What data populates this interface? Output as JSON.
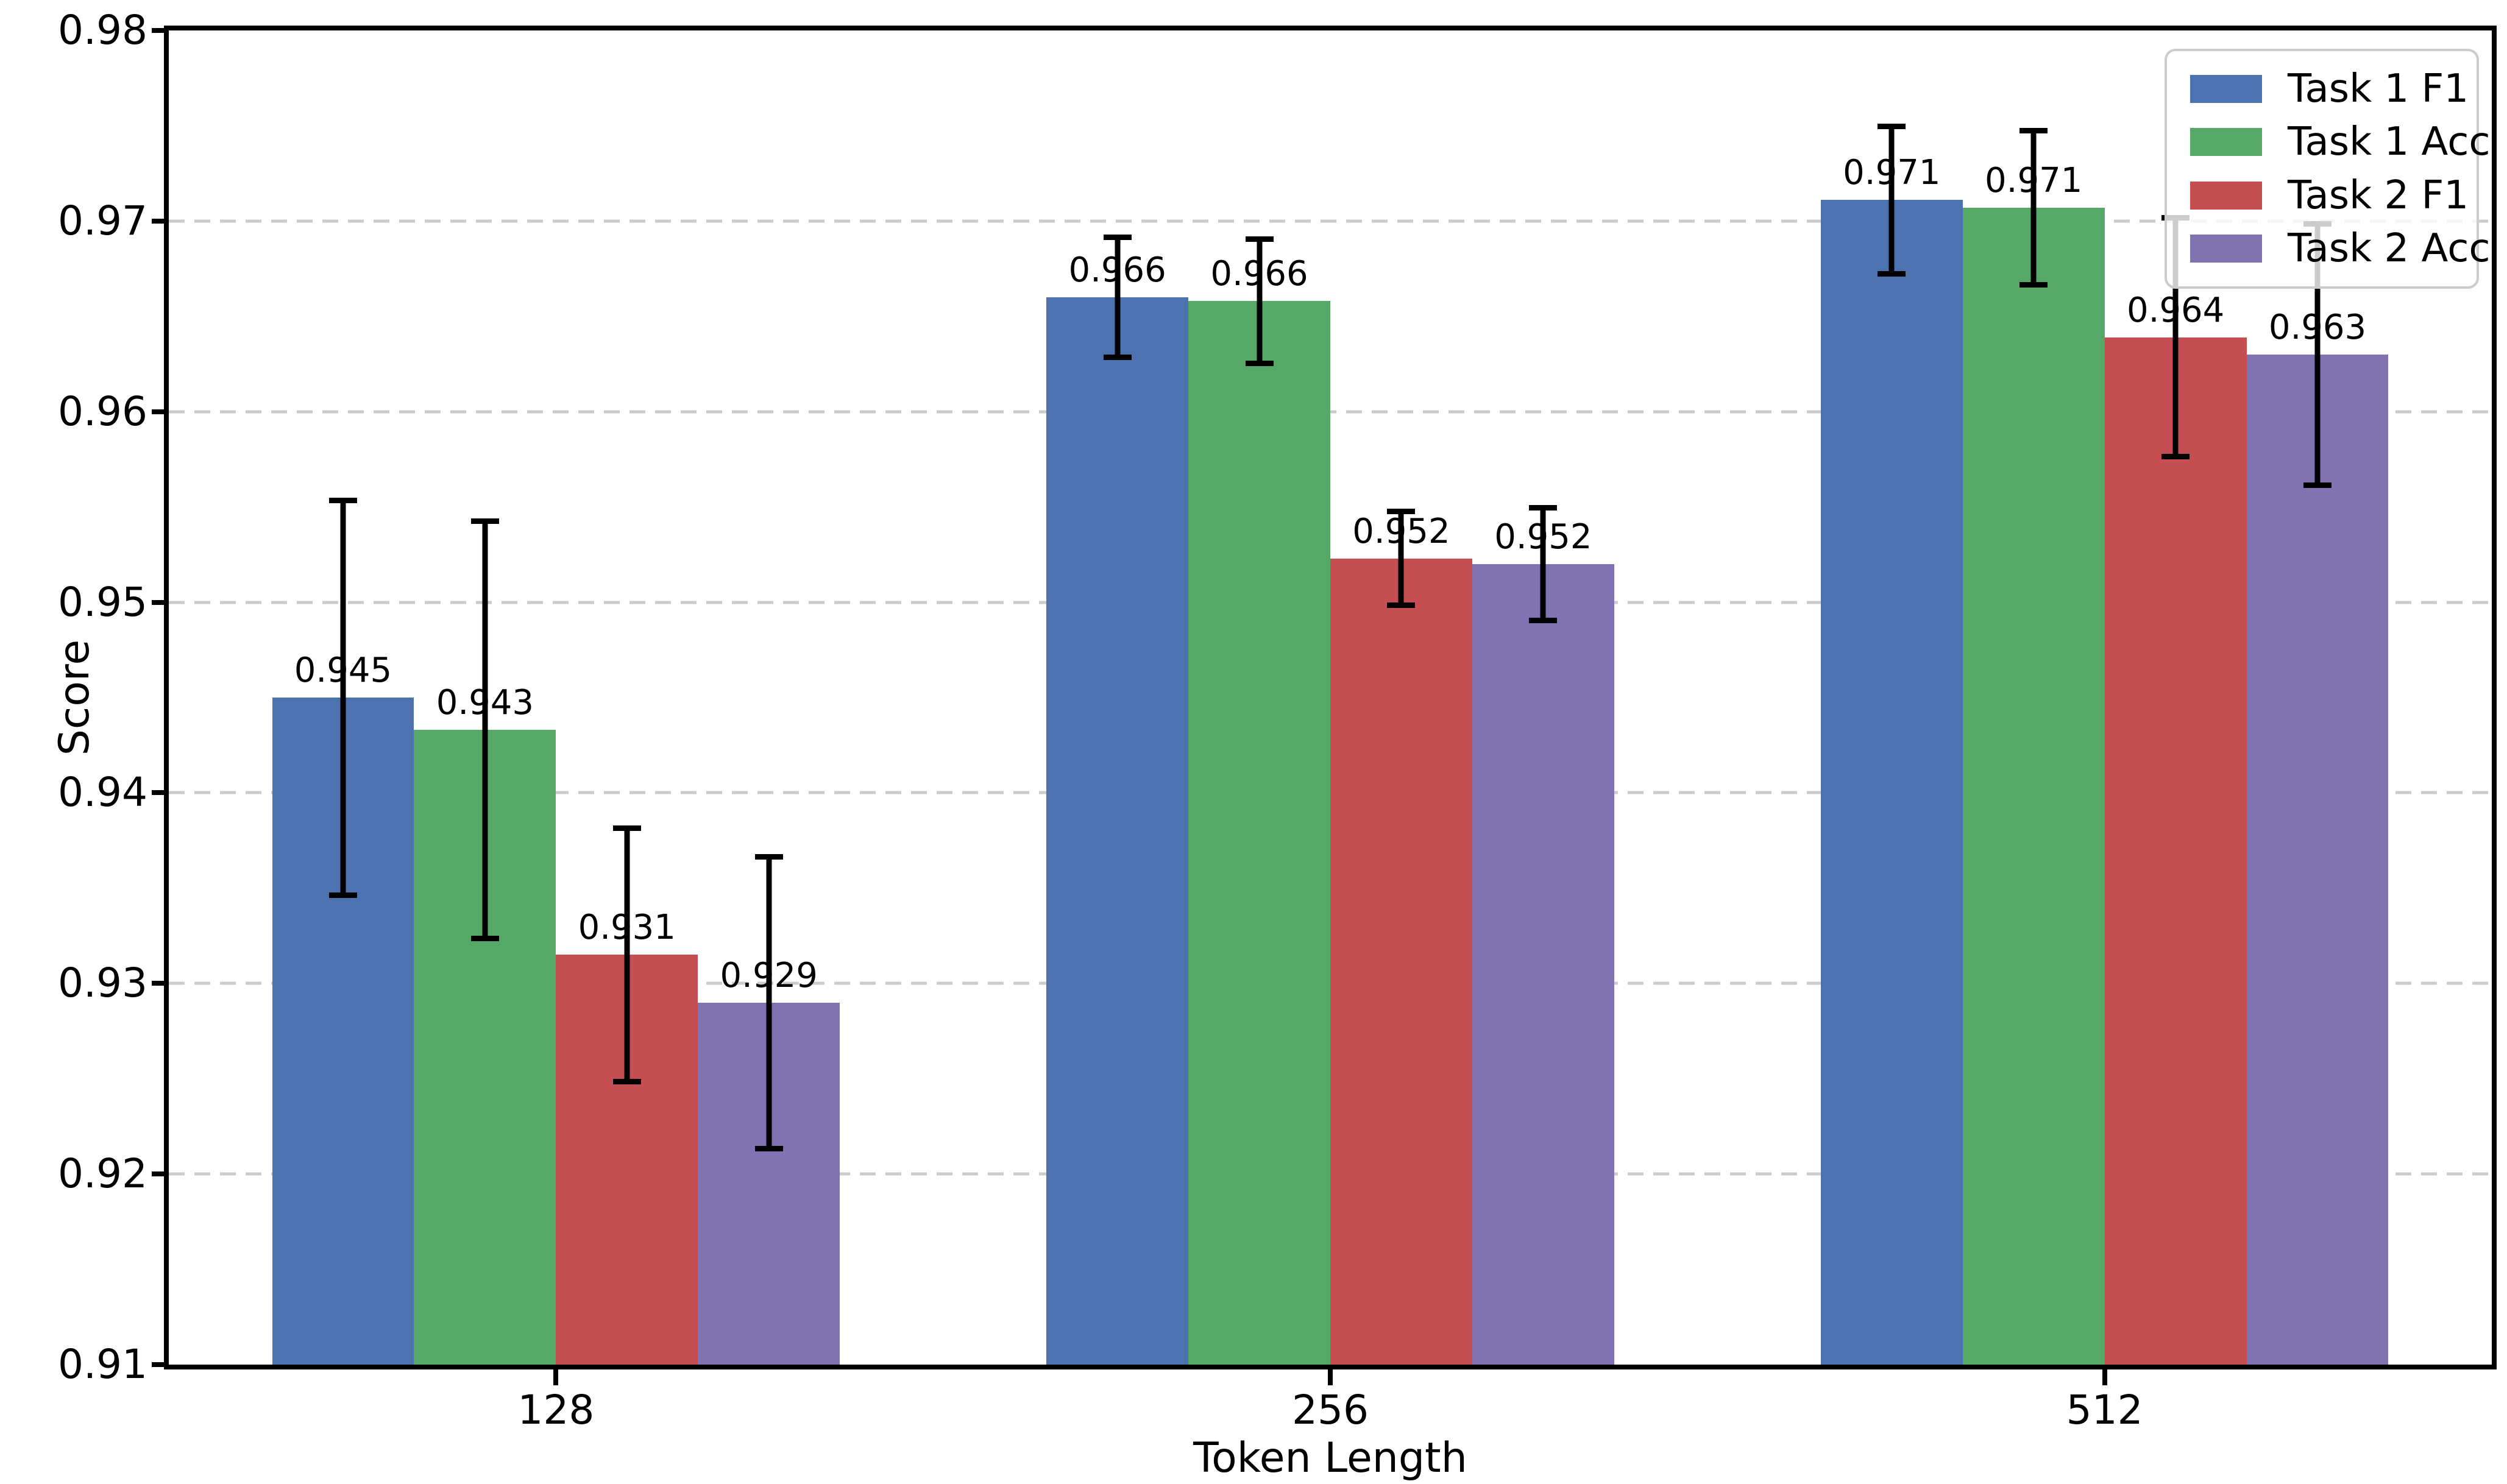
{
  "figure": {
    "background": "#ffffff",
    "text_color": "#000000"
  },
  "chart_data": {
    "type": "bar",
    "title": "",
    "xlabel": "Token Length",
    "ylabel": "Score",
    "categories": [
      "128",
      "256",
      "512"
    ],
    "series": [
      {
        "name": "Task 1 F1",
        "color": "#4C72B0",
        "values": [
          0.945,
          0.966,
          0.9711
        ],
        "labels": [
          "0.945",
          "0.966",
          "0.971"
        ],
        "errors": [
          0.0105,
          0.0033,
          0.004
        ]
      },
      {
        "name": "Task 1 Acc",
        "color": "#55A868",
        "values": [
          0.9433,
          0.9658,
          0.9707
        ],
        "labels": [
          "0.943",
          "0.966",
          "0.971"
        ],
        "errors": [
          0.0111,
          0.0034,
          0.0042
        ]
      },
      {
        "name": "Task 2 F1",
        "color": "#C44E52",
        "values": [
          0.9315,
          0.9523,
          0.9639
        ],
        "labels": [
          "0.931",
          "0.952",
          "0.964"
        ],
        "errors": [
          0.0068,
          0.0026,
          0.0064
        ]
      },
      {
        "name": "Task 2 Acc",
        "color": "#8172B2",
        "values": [
          0.929,
          0.952,
          0.963
        ],
        "labels": [
          "0.929",
          "0.952",
          "0.963"
        ],
        "errors": [
          0.0078,
          0.0031,
          0.007
        ]
      }
    ],
    "ylim": [
      0.91,
      0.98
    ],
    "y_ticks": [
      "0.91",
      "0.92",
      "0.93",
      "0.94",
      "0.95",
      "0.96",
      "0.97",
      "0.98"
    ],
    "grid": "horizontal-dashed",
    "grid_color": "#cbcbcb",
    "error_bar_color": "#000000",
    "legend_position": "upper-right"
  }
}
